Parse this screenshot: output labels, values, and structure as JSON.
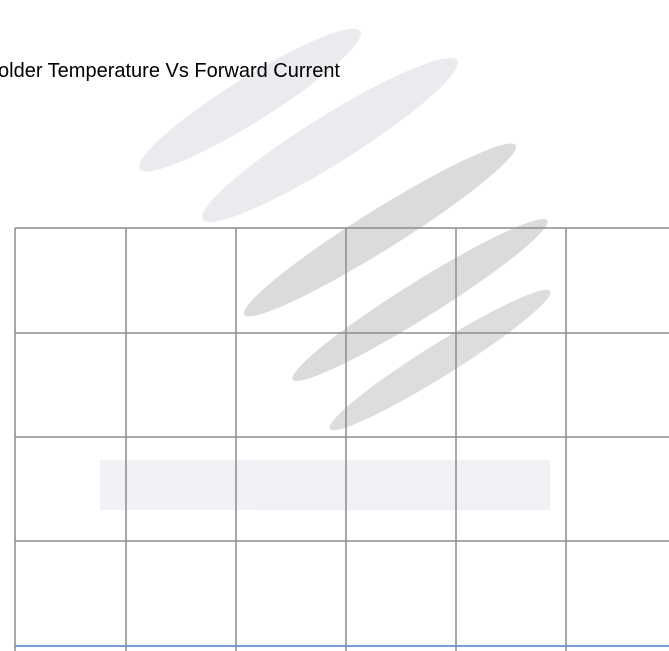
{
  "chart_data": {
    "type": "line",
    "title": "older Temperature Vs Forward Current",
    "grid": true
  }
}
